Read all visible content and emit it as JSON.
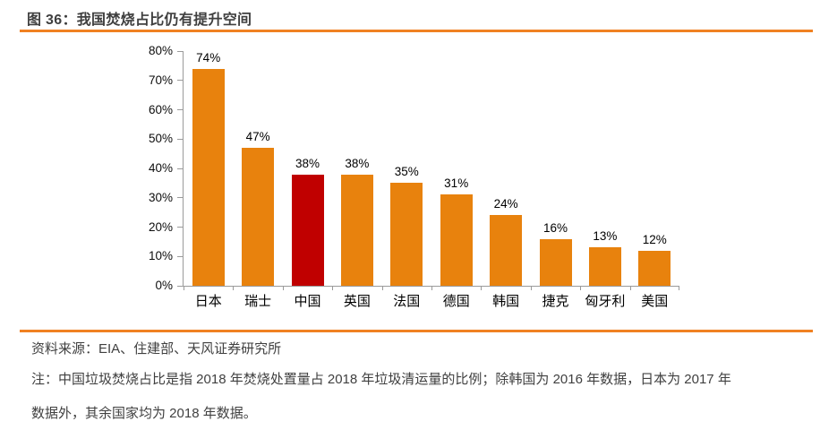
{
  "header": {
    "title": "图 36：我国焚烧占比仍有提升空间"
  },
  "footer": {
    "source": "资料来源：EIA、住建部、天风证券研究所",
    "note_lines": [
      "注：中国垃圾焚烧占比是指 2018 年焚烧处置量占 2018 年垃圾清运量的比例；除韩国为 2016 年数据，日本为 2017 年",
      "数据外，其余国家均为 2018 年数据。"
    ]
  },
  "colors": {
    "accent_rule": "#F08122",
    "bar_orange": "#E8820D",
    "bar_highlight_red": "#C00000",
    "axis_gray": "#9A9A9A",
    "title_text": "#3F3F3F",
    "body_text": "#404040"
  },
  "chart_data": {
    "type": "bar",
    "title": "我国焚烧占比仍有提升空间",
    "categories": [
      "日本",
      "瑞士",
      "中国",
      "英国",
      "法国",
      "德国",
      "韩国",
      "捷克",
      "匈牙利",
      "美国"
    ],
    "values": [
      74,
      47,
      38,
      38,
      35,
      31,
      24,
      16,
      13,
      12
    ],
    "value_labels": [
      "74%",
      "47%",
      "38%",
      "38%",
      "35%",
      "31%",
      "24%",
      "16%",
      "13%",
      "12%"
    ],
    "highlight_index": 2,
    "highlight_category": "中国",
    "bar_color": "#E8820D",
    "highlight_color": "#C00000",
    "xlabel": "",
    "ylabel": "",
    "ylim": [
      0,
      80
    ],
    "ytick_step": 10,
    "ytick_labels": [
      "0%",
      "10%",
      "20%",
      "30%",
      "40%",
      "50%",
      "60%",
      "70%",
      "80%"
    ],
    "grid": false,
    "legend": "none"
  }
}
